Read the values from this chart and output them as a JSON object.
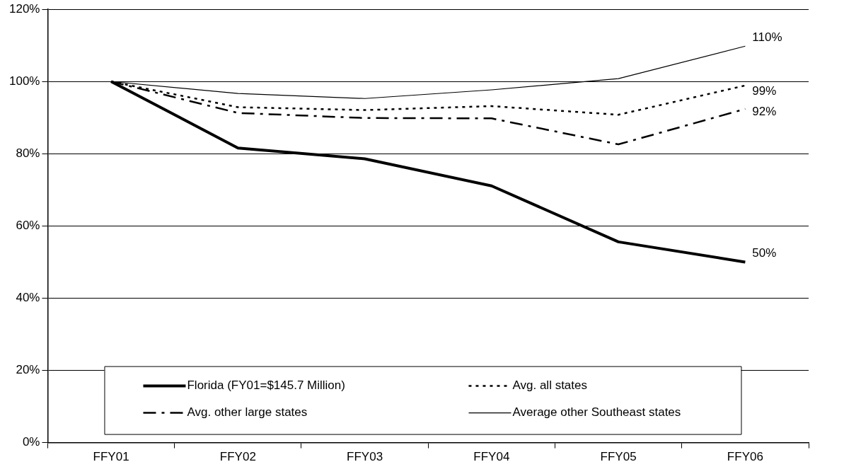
{
  "chart_data": {
    "type": "line",
    "categories": [
      "FFY01",
      "FFY02",
      "FFY03",
      "FFY04",
      "FFY05",
      "FFY06"
    ],
    "series": [
      {
        "name": "Florida (FY01=$145.7 Million)",
        "color": "#000000",
        "line_style": "solid",
        "values": [
          100,
          81.6,
          78.6,
          71.1,
          55.6,
          50.0
        ],
        "value_labels": [
          null,
          null,
          null,
          null,
          null,
          "50%"
        ]
      },
      {
        "name": "Avg. all states",
        "color": "#000000",
        "line_style": "dotted",
        "values": [
          100,
          92.9,
          92.1,
          93.2,
          90.8,
          98.9
        ],
        "value_labels": [
          null,
          null,
          null,
          null,
          null,
          "99%"
        ]
      },
      {
        "name": "Avg. other large states",
        "color": "#000000",
        "line_style": "dashed",
        "values": [
          100,
          91.3,
          89.9,
          89.8,
          82.6,
          92.4
        ],
        "value_labels": [
          null,
          null,
          null,
          null,
          null,
          "92%"
        ]
      },
      {
        "name": "Average other Southeast states",
        "color": "#000000",
        "line_style": "solid",
        "values": [
          100,
          96.7,
          95.3,
          97.7,
          100.8,
          109.8
        ],
        "value_labels": [
          null,
          null,
          null,
          null,
          null,
          "110%"
        ]
      }
    ],
    "ylim": [
      0,
      120
    ],
    "yticks": [
      {
        "value": 0,
        "label": "0%"
      },
      {
        "value": 20,
        "label": "20%"
      },
      {
        "value": 40,
        "label": "40%"
      },
      {
        "value": 60,
        "label": "60%"
      },
      {
        "value": 80,
        "label": "80%"
      },
      {
        "value": 100,
        "label": "100%"
      },
      {
        "value": 120,
        "label": "120%"
      }
    ],
    "grid": "y",
    "legend": "bottom",
    "marker": "none"
  }
}
